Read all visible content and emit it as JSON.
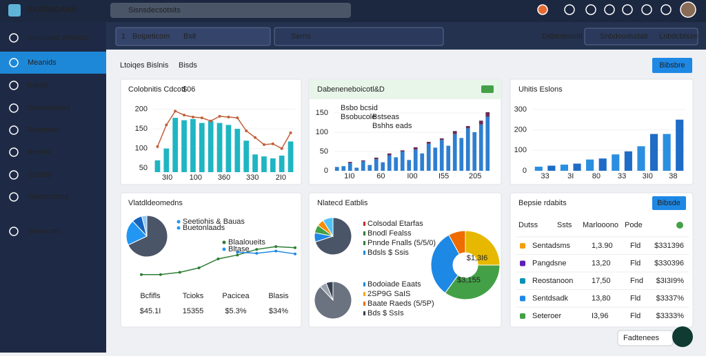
{
  "topbar": {
    "brand": "EKSDBOANA",
    "search": "Sisnsdecsotsits"
  },
  "sidebar": {
    "active": 1,
    "items": [
      "Simulaed Jolonch",
      "Meanids",
      "Kentls",
      "Dsonoonlant",
      "Reentntis",
      "Kennls",
      "Conoly",
      "Gentocletna",
      "Genoeats"
    ]
  },
  "filters": {
    "index": "1",
    "select1": "Boipeticom",
    "select1_tag": "Bsit",
    "select2": "Serris",
    "label": "Dsbtotenotit",
    "search": "Snbdoodsstait",
    "status": "Lnbdcbtsze"
  },
  "page": {
    "title": "Ltoiqes Bislnis",
    "tag": "Bisds",
    "button": "Bibsbre"
  },
  "revenue_chart": {
    "title": "Colobnitis Cdcotl",
    "title_tag": "$06",
    "ylim": [
      40,
      215
    ],
    "yticks": [
      50,
      100,
      150,
      200
    ],
    "xlabels": [
      "3I0",
      "100",
      "360",
      "330",
      "2I0"
    ],
    "bar_color": "#1fb5c2",
    "line_color": "#c0603a",
    "bars": [
      70,
      100,
      178,
      172,
      175,
      165,
      170,
      165,
      160,
      150,
      120,
      85,
      80,
      75,
      82,
      118
    ],
    "line": [
      105,
      160,
      195,
      185,
      180,
      178,
      170,
      182,
      180,
      178,
      145,
      128,
      110,
      112,
      100,
      140
    ]
  },
  "segment_chart": {
    "title": "Dabeneneboicotl&D",
    "legend": [
      "Bsbo bcsid",
      "Bsobucole",
      "Bstseas",
      "Bshhs eads"
    ],
    "ylim": [
      0,
      175
    ],
    "yticks": [
      0,
      50,
      100,
      150
    ],
    "xlabels": [
      "1I0",
      "60",
      "I00",
      "I55",
      "205"
    ],
    "colors": [
      "#2f7fd0",
      "#6a2c55"
    ],
    "base": [
      10,
      12,
      20,
      8,
      25,
      15,
      30,
      22,
      40,
      35,
      50,
      28,
      55,
      45,
      70,
      60,
      80,
      65,
      95,
      85,
      110,
      100,
      120,
      140
    ],
    "top": [
      0,
      0,
      3,
      0,
      2,
      0,
      4,
      0,
      5,
      0,
      3,
      0,
      6,
      0,
      5,
      0,
      4,
      0,
      8,
      0,
      6,
      0,
      10,
      12
    ]
  },
  "growth_chart": {
    "title": "Uhitis Eslons",
    "ylim": [
      0,
      330
    ],
    "yticks": [
      0,
      100,
      200,
      300
    ],
    "xlabels": [
      "33",
      "3I",
      "80",
      "33",
      "3I0",
      "38"
    ],
    "colors": [
      "#2a8fe0",
      "#1f6cc7"
    ],
    "values": [
      20,
      25,
      30,
      35,
      55,
      60,
      80,
      95,
      120,
      180,
      180,
      250
    ]
  },
  "overview": {
    "title": "Vlatdldeomedns",
    "pie": [
      68,
      20,
      8,
      4
    ],
    "pie_colors": [
      "#4a5568",
      "#2196f3",
      "#1565c0",
      "#90caf9"
    ],
    "legend": [
      "Seetiohis & Bauas",
      "Buetonlaads",
      "Blaaloueits",
      "Bltase"
    ],
    "legend_colors": [
      "#2196f3",
      "#2196f3",
      "#2e7d32",
      "#2196f3"
    ],
    "ylim": [
      0,
      80
    ],
    "line_colors": [
      "#2e7d32",
      "#1e88e5"
    ],
    "green": [
      20,
      20,
      24,
      32,
      48,
      55,
      65,
      70,
      68
    ],
    "blue": [
      null,
      null,
      null,
      null,
      null,
      60,
      58,
      62,
      57
    ],
    "stats": [
      {
        "label": "Bcfifls",
        "value": "$45.1I",
        "color": "#2e7d32"
      },
      {
        "label": "Tcioks",
        "value": "15355",
        "color": "#1565c0"
      },
      {
        "label": "Pacicea",
        "value": "$5.3%",
        "color": "#c62828"
      },
      {
        "label": "Blasis",
        "value": "$34%",
        "color": "#ef6c00"
      }
    ]
  },
  "distribution": {
    "title": "Nlatecd Eatblis",
    "pie1": [
      70,
      8,
      7,
      6,
      9
    ],
    "pie1_colors": [
      "#4a5568",
      "#1e88e5",
      "#43a047",
      "#fb8c00",
      "#4fc3f7"
    ],
    "legend1": [
      "Colsodal Etarfas",
      "Bnodl Fealss",
      "Pnnde Fnalls (5/5/0)",
      "Bdsls $ Ssis"
    ],
    "legend1_colors": [
      "#c62828",
      "#2e7d32",
      "#2e7d32",
      "#1e88e5"
    ],
    "pie2": [
      88,
      6,
      6
    ],
    "pie2_colors": [
      "#6b7280",
      "#9ca3af",
      "#374151"
    ],
    "legend2": [
      "Bodoiade Eaats",
      "2SP9G SaIS",
      "Baate Raeds (5/5P)",
      "Bds $ SsIs"
    ],
    "legend2_colors": [
      "#1e88e5",
      "#f9a825",
      "#ef6c00",
      "#374151"
    ],
    "donut": [
      25,
      35,
      32,
      8
    ],
    "donut_colors": [
      "#e6b800",
      "#43a047",
      "#1e88e5",
      "#ef6c00"
    ],
    "donut_labels": [
      "$1,3I6",
      "$3,155"
    ]
  },
  "table": {
    "title": "Bepsie rdabits",
    "button": "Bibsde",
    "headers": [
      "Dutss",
      "Ssts",
      "Marlooono",
      "Pode"
    ],
    "rows": [
      {
        "color": "#f59e0b",
        "name": "Sentadsms",
        "value": "1,3.90",
        "code": "Fld",
        "amount": "$331396",
        "amount_color": "#2e7d32"
      },
      {
        "color": "#5b21b6",
        "name": "Pangdsne",
        "value": "13,20",
        "code": "Fld",
        "amount": "$330396",
        "amount_color": "#2e7d32"
      },
      {
        "color": "#0891b2",
        "name": "Reostanoon",
        "value": "17,50",
        "code": "Fnd",
        "amount": "$3I3I9%",
        "amount_color": "#2e7d32"
      },
      {
        "color": "#1e88e5",
        "name": "Sentdsadk",
        "value": "13,80",
        "code": "Fld",
        "amount": "$3337%",
        "amount_color": "#c62828"
      },
      {
        "color": "#43a047",
        "name": "Seteroer",
        "value": "I3,96",
        "code": "Fld",
        "amount": "$3333%",
        "amount_color": "#c62828"
      }
    ]
  },
  "help": {
    "label": "Fadtenees"
  }
}
